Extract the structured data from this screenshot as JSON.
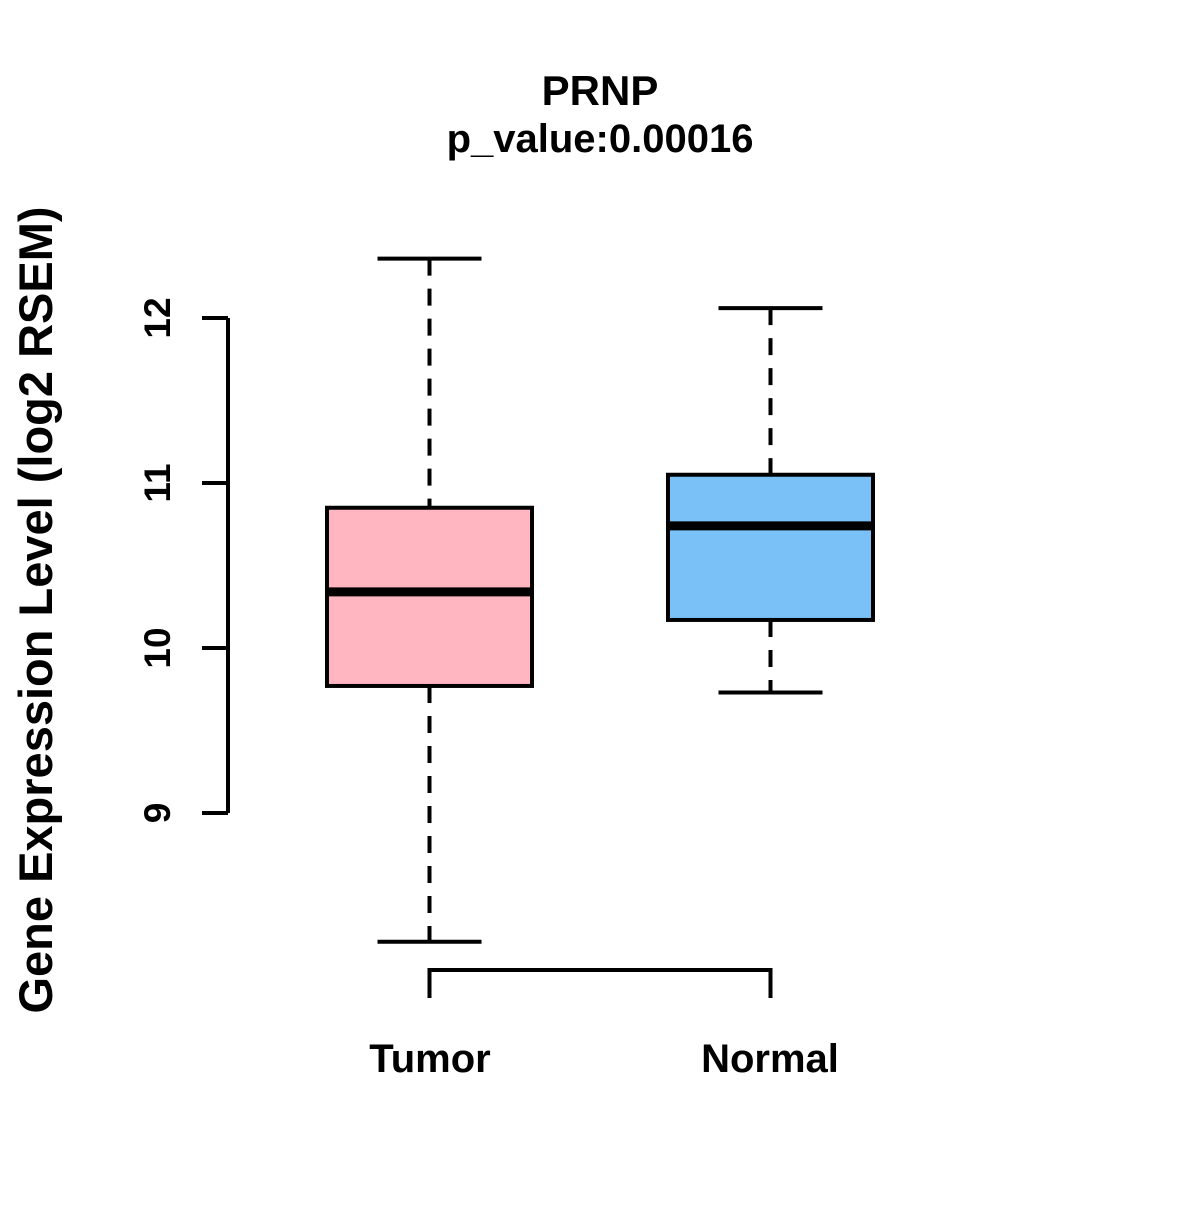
{
  "chart_data": {
    "type": "boxplot",
    "title": "PRNP",
    "subtitle": "p_value:0.00016",
    "ylabel": "Gene Expression Level (log2 RSEM)",
    "xlabel": "",
    "yticks": [
      9,
      10,
      11,
      12
    ],
    "ylim": [
      8.0,
      12.5
    ],
    "grid": false,
    "legend": "none",
    "categories": [
      "Tumor",
      "Normal"
    ],
    "groups": [
      {
        "label": "Tumor",
        "fill_color": "#FFB6C1",
        "lower_whisker": 8.22,
        "q1": 9.77,
        "median": 10.34,
        "q3": 10.85,
        "upper_whisker": 12.36
      },
      {
        "label": "Normal",
        "fill_color": "#79C1F7",
        "lower_whisker": 9.73,
        "q1": 10.17,
        "median": 10.74,
        "q3": 11.05,
        "upper_whisker": 12.06
      }
    ],
    "colors": {
      "stroke": "#000000",
      "background": "#FFFFFF",
      "tumor_fill": "#FFB6C1",
      "normal_fill": "#79C1F7"
    }
  }
}
